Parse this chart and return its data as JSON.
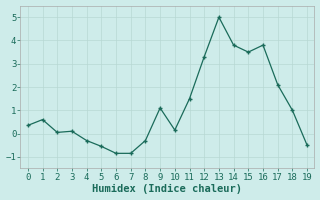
{
  "x": [
    0,
    1,
    2,
    3,
    4,
    5,
    6,
    7,
    8,
    9,
    10,
    11,
    12,
    13,
    14,
    15,
    16,
    17,
    18,
    19
  ],
  "y": [
    0.35,
    0.6,
    0.05,
    0.1,
    -0.3,
    -0.55,
    -0.85,
    -0.85,
    -0.3,
    1.1,
    0.15,
    1.5,
    3.3,
    5.0,
    3.8,
    3.5,
    3.8,
    2.1,
    1.0,
    -0.5
  ],
  "line_color": "#1a6b5a",
  "marker_color": "#1a6b5a",
  "bg_color": "#ceecea",
  "grid_color": "#b8d8d4",
  "xlabel": "Humidex (Indice chaleur)",
  "ylim": [
    -1.5,
    5.5
  ],
  "xlim": [
    -0.5,
    19.5
  ],
  "yticks": [
    -1,
    0,
    1,
    2,
    3,
    4,
    5
  ],
  "xticks": [
    0,
    1,
    2,
    3,
    4,
    5,
    6,
    7,
    8,
    9,
    10,
    11,
    12,
    13,
    14,
    15,
    16,
    17,
    18,
    19
  ],
  "tick_fontsize": 6.5,
  "label_fontsize": 7.5
}
